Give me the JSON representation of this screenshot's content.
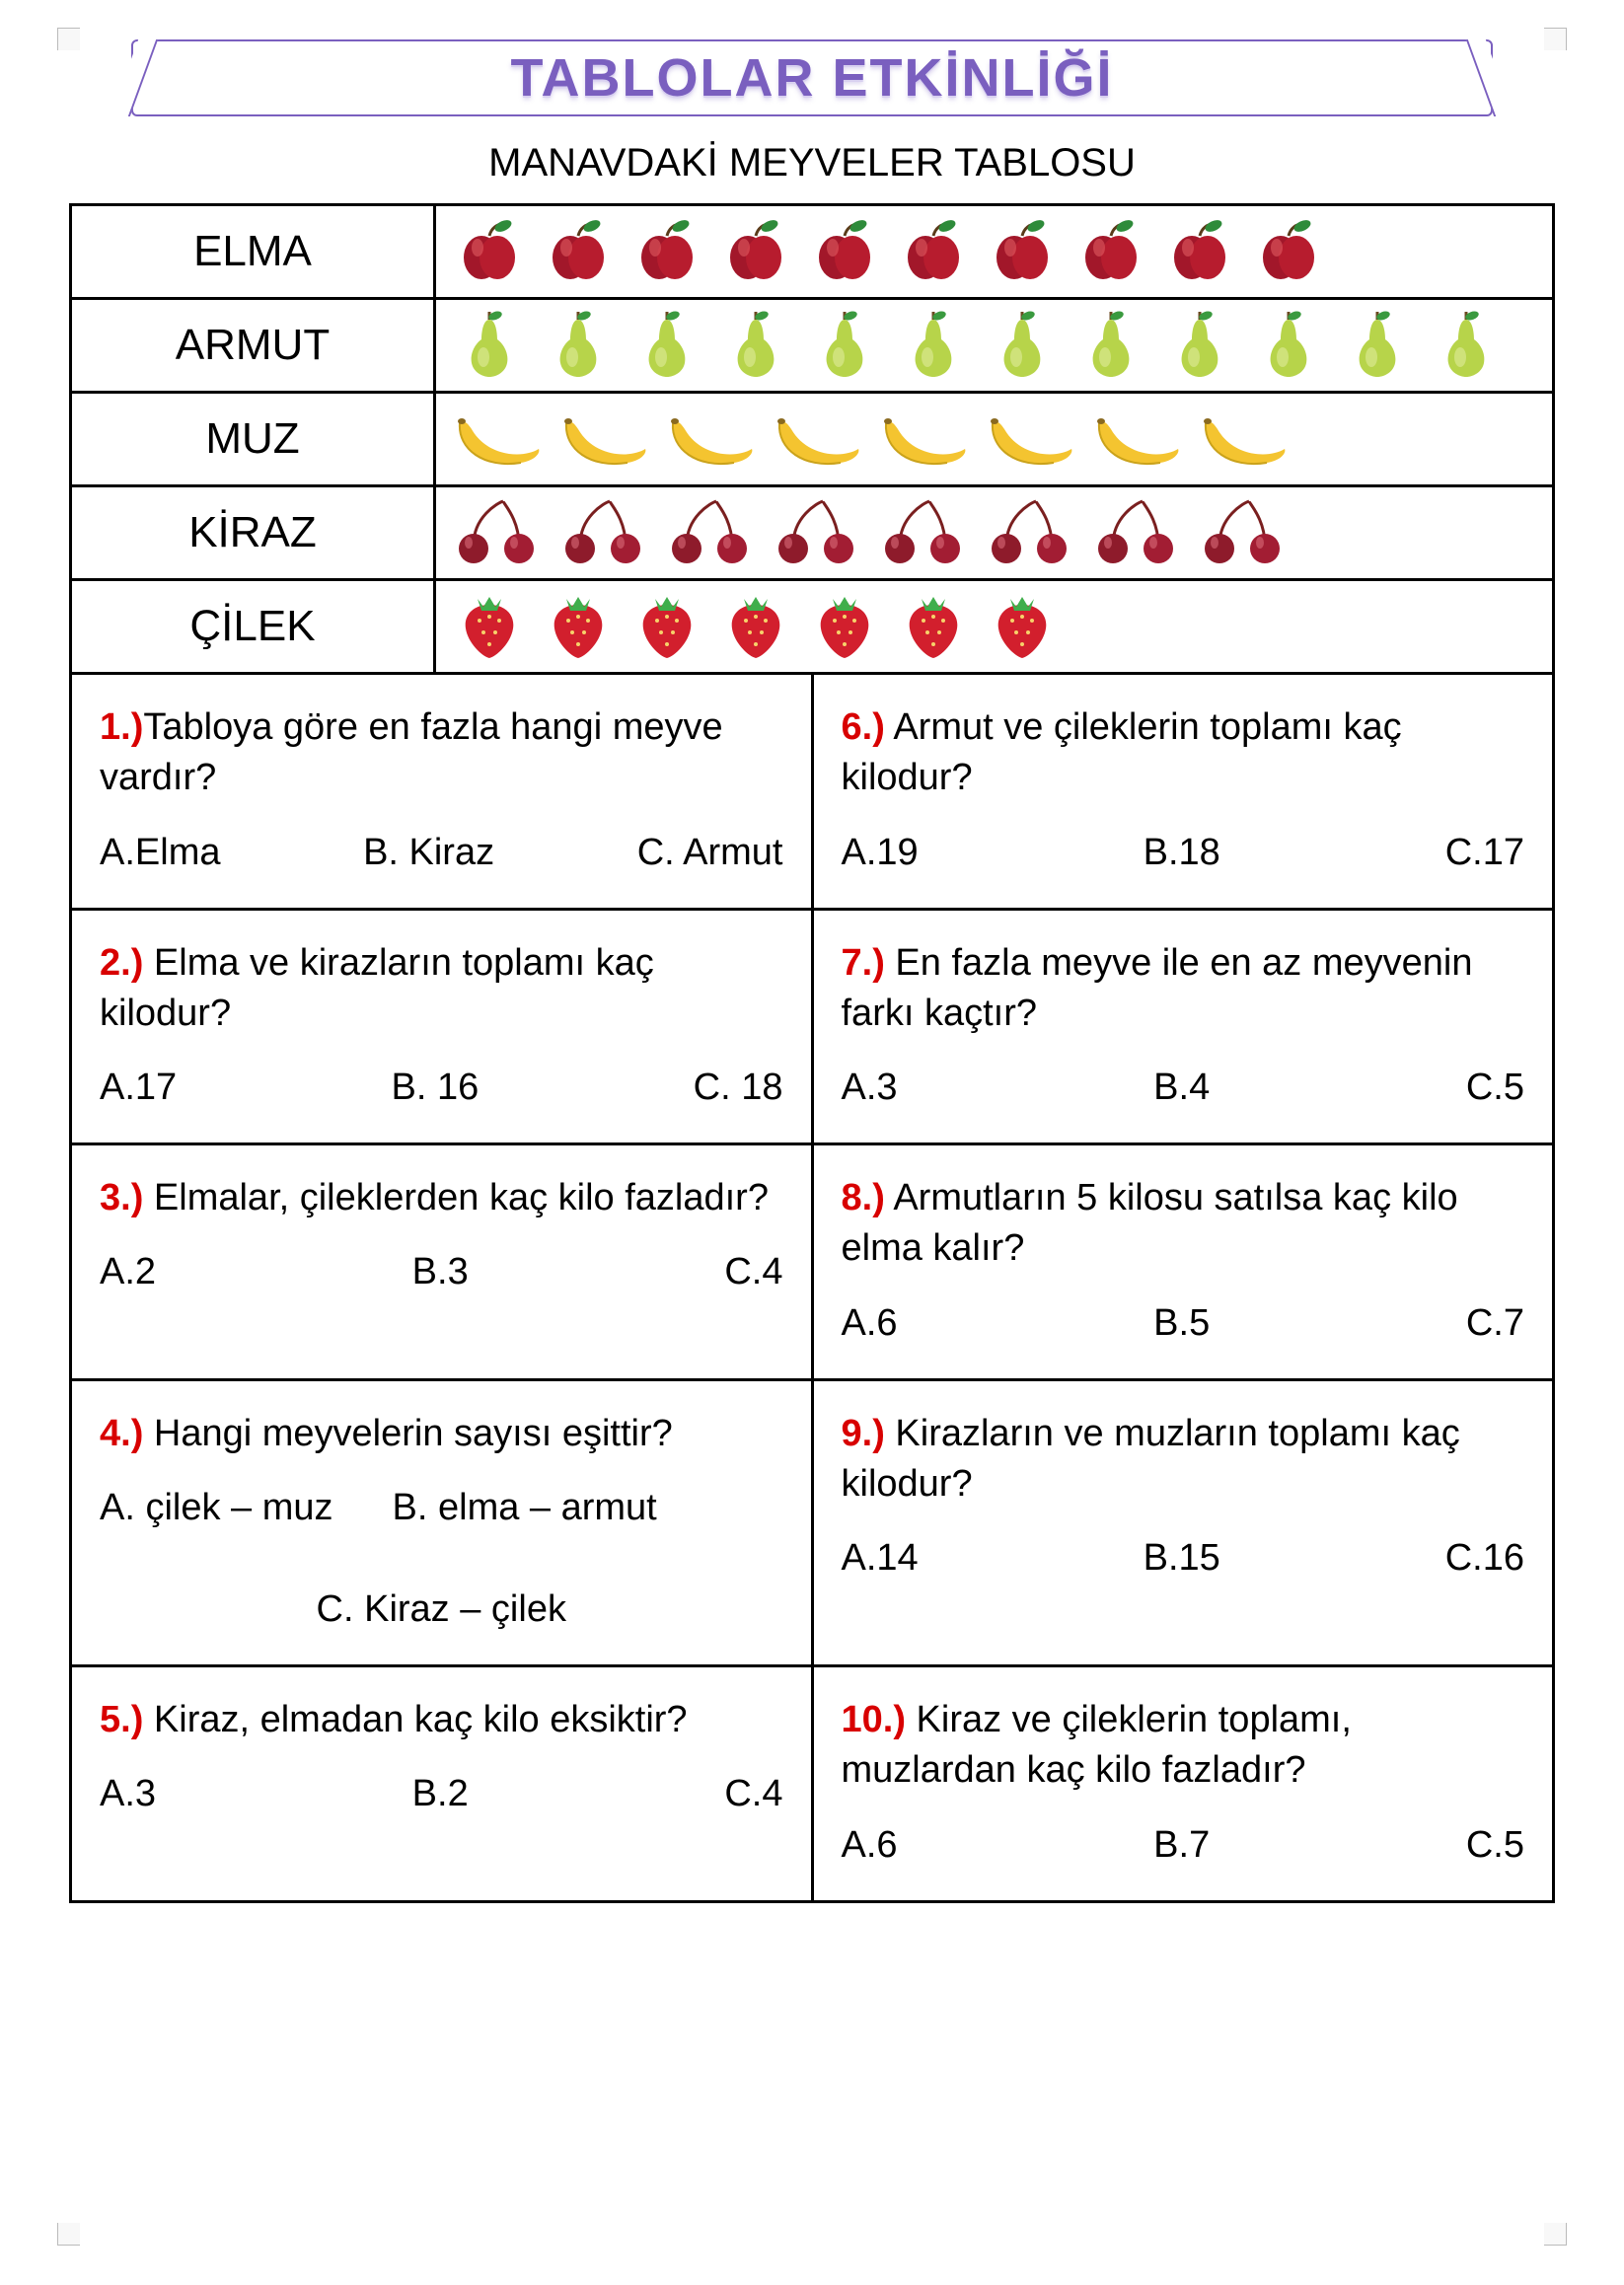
{
  "colors": {
    "title": "#7a5fbf",
    "qnum": "#d80000",
    "border": "#000000",
    "background": "#ffffff"
  },
  "title": "TABLOLAR ETKİNLİĞİ",
  "subtitle": "MANAVDAKİ MEYVELER TABLOSU",
  "fruit_table": {
    "rows": [
      {
        "label": "ELMA",
        "icon": "apple",
        "count": 10
      },
      {
        "label": "ARMUT",
        "icon": "pear",
        "count": 12
      },
      {
        "label": "MUZ",
        "icon": "banana",
        "count": 8
      },
      {
        "label": "KİRAZ",
        "icon": "cherry",
        "count": 8
      },
      {
        "label": "ÇİLEK",
        "icon": "strawberry",
        "count": 7
      }
    ]
  },
  "questions": {
    "q1": {
      "num": "1.)",
      "text": "Tabloya göre en fazla hangi meyve vardır?",
      "a": "A.Elma",
      "b": "B. Kiraz",
      "c": "C. Armut"
    },
    "q2": {
      "num": "2.)",
      "text": " Elma ve kirazların toplamı kaç kilodur?",
      "a": "A.17",
      "b": "B. 16",
      "c": "C. 18"
    },
    "q3": {
      "num": "3.)",
      "text": " Elmalar, çileklerden kaç kilo fazladır?",
      "a": "A.2",
      "b": "B.3",
      "c": "C.4"
    },
    "q4": {
      "num": "4.)",
      "text": " Hangi meyvelerin sayısı eşittir?",
      "a": "A. çilek – muz",
      "b": "B. elma – armut",
      "c": "C. Kiraz – çilek"
    },
    "q5": {
      "num": "5.)",
      "text": " Kiraz, elmadan kaç kilo eksiktir?",
      "a": "A.3",
      "b": "B.2",
      "c": "C.4"
    },
    "q6": {
      "num": "6.)",
      "text": " Armut ve çileklerin toplamı kaç kilodur?",
      "a": "A.19",
      "b": "B.18",
      "c": "C.17"
    },
    "q7": {
      "num": "7.)",
      "text": " En fazla meyve ile en az meyvenin farkı kaçtır?",
      "a": "A.3",
      "b": "B.4",
      "c": "C.5"
    },
    "q8": {
      "num": "8.)",
      "text": " Armutların 5 kilosu satılsa kaç kilo elma kalır?",
      "a": "A.6",
      "b": "B.5",
      "c": "C.7"
    },
    "q9": {
      "num": "9.)",
      "text": " Kirazların ve muzların toplamı kaç kilodur?",
      "a": "A.14",
      "b": "B.15",
      "c": "C.16"
    },
    "q10": {
      "num": "10.)",
      "text": " Kiraz ve çileklerin toplamı, muzlardan kaç kilo fazladır?",
      "a": "A.6",
      "b": "B.7",
      "c": "C.5"
    }
  }
}
